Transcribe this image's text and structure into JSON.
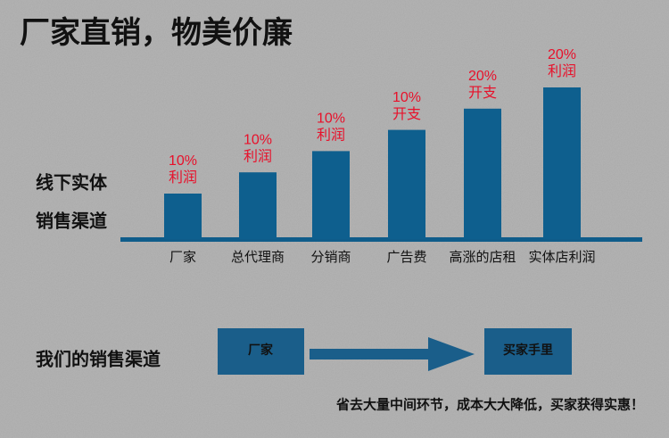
{
  "title": "厂家直销，物美价廉",
  "side_label": [
    "线下实体",
    "销售渠道"
  ],
  "bars": [
    {
      "category": "厂家",
      "percent": "10%",
      "label": "利润"
    },
    {
      "category": "总代理商",
      "percent": "10%",
      "label": "利润"
    },
    {
      "category": "分销商",
      "percent": "10%",
      "label": "利润"
    },
    {
      "category": "广告费",
      "percent": "10%",
      "label": "开支"
    },
    {
      "category": "高涨的店租",
      "percent": "20%",
      "label": "开支"
    },
    {
      "category": "实体店利润",
      "percent": "20%",
      "label": "利润"
    }
  ],
  "our_channel": {
    "label": "我们的销售渠道",
    "from": "厂家",
    "to": "买家手里"
  },
  "footer": "省去大量中间环节，成本大大降低，买家获得实惠！"
}
